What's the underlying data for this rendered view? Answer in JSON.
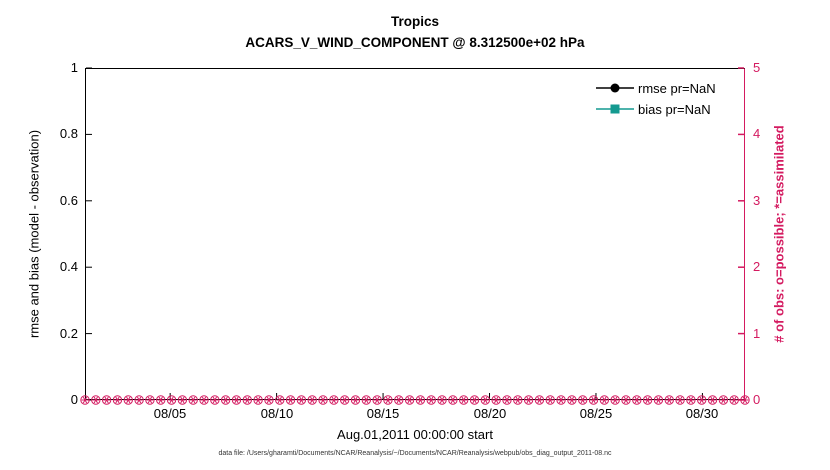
{
  "title": {
    "line1": "Tropics",
    "line2": "ACARS_V_WIND_COMPONENT @ 8.312500e+02 hPa"
  },
  "axes": {
    "left": {
      "label": "rmse and bias (model - observation)",
      "ticks": [
        "0",
        "0.2",
        "0.4",
        "0.6",
        "0.8",
        "1"
      ],
      "max": 1,
      "color": "#000000"
    },
    "right": {
      "label": "# of obs: o=possible; *=assimilated",
      "ticks": [
        "0",
        "1",
        "2",
        "3",
        "4",
        "5"
      ],
      "max": 5,
      "color": "#d41a60"
    },
    "x": {
      "ticks": [
        "08/05",
        "08/10",
        "08/15",
        "08/20",
        "08/25",
        "08/30"
      ],
      "tick_days": [
        4,
        9,
        14,
        19,
        24,
        29
      ],
      "span_days": 31,
      "label": "Aug.01,2011 00:00:00 start"
    }
  },
  "legend": {
    "items": [
      {
        "label": "rmse pr=NaN",
        "color": "#000000",
        "marker": "filled-circle"
      },
      {
        "label": "bias pr=NaN",
        "color": "#149a90",
        "marker": "filled-square"
      }
    ]
  },
  "caption": "data file: /Users/gharamti/Documents/NCAR/Reanalysis/~/Documents/NCAR/Reanalysis/webpub/obs_diag_output_2011-08.nc",
  "chart_data": {
    "type": "line",
    "title": "Tropics",
    "subtitle": "ACARS_V_WIND_COMPONENT @ 8.312500e+02 hPa",
    "xlabel": "Aug.01,2011 00:00:00 start",
    "x_tick_labels": [
      "08/05",
      "08/10",
      "08/15",
      "08/20",
      "08/25",
      "08/30"
    ],
    "x_range_days": [
      0,
      31
    ],
    "ylabel_left": "rmse and bias (model - observation)",
    "ylim_left": [
      0,
      1
    ],
    "ylabel_right": "# of obs: o=possible; *=assimilated",
    "ylim_right": [
      0,
      5
    ],
    "grid": false,
    "legend_position": "top-right-inside",
    "series": [
      {
        "name": "rmse pr=NaN",
        "axis": "left",
        "color": "#000000",
        "marker": "filled-circle",
        "values": null,
        "note": "all values NaN - no curve drawn"
      },
      {
        "name": "bias pr=NaN",
        "axis": "left",
        "color": "#149a90",
        "marker": "filled-square",
        "values": null,
        "note": "all values NaN - no curve drawn"
      },
      {
        "name": "# of obs possible (o markers)",
        "axis": "right",
        "color": "#d41a60",
        "marker": "open-circle",
        "constant_value": 0
      },
      {
        "name": "# of obs assimilated (* markers)",
        "axis": "right",
        "color": "#d41a60",
        "marker": "asterisk",
        "constant_value": 0
      }
    ],
    "obs_markers": {
      "count": 62,
      "value": 0,
      "color": "#d41a60"
    }
  }
}
